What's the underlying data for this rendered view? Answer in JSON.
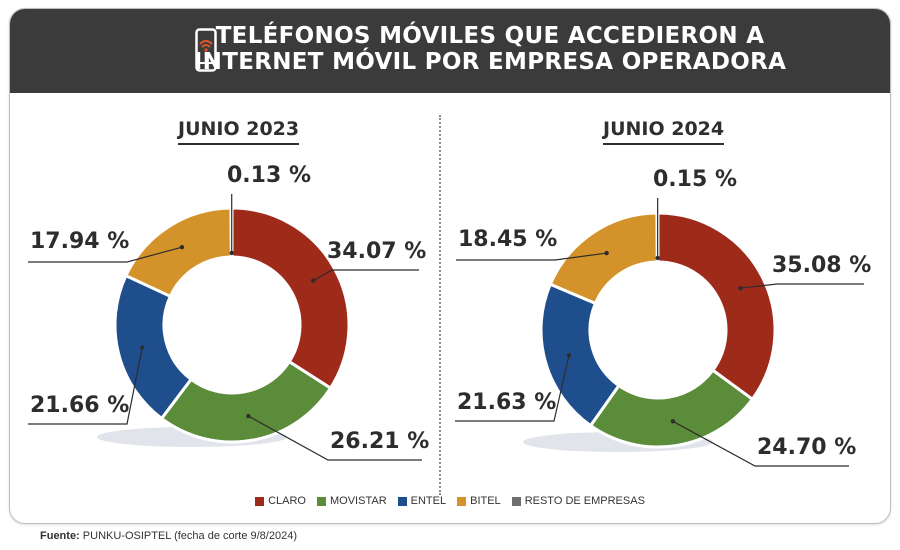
{
  "header": {
    "title_line1": "TELÉFONOS MÓVILES QUE ACCEDIERON A",
    "title_line2": "INTERNET MÓVIL POR EMPRESA OPERADORA",
    "icon": "smartphone-wifi-icon"
  },
  "colors": {
    "claro": "#9e2a1a",
    "movistar": "#5b8c3a",
    "entel": "#1f4e8c",
    "bitel": "#d4922a",
    "resto": "#6e6e6e",
    "header_bg": "#3b3b3b"
  },
  "chart_data": [
    {
      "type": "pie",
      "title": "JUNIO 2023",
      "donut": true,
      "categories": [
        "CLARO",
        "MOVISTAR",
        "ENTEL",
        "BITEL",
        "RESTO DE EMPRESAS"
      ],
      "values": [
        34.07,
        26.21,
        21.66,
        17.94,
        0.13
      ],
      "labels": [
        "34.07 %",
        "26.21 %",
        "21.66 %",
        "17.94 %",
        "0.13 %"
      ]
    },
    {
      "type": "pie",
      "title": "JUNIO 2024",
      "donut": true,
      "categories": [
        "CLARO",
        "MOVISTAR",
        "ENTEL",
        "BITEL",
        "RESTO DE EMPRESAS"
      ],
      "values": [
        35.08,
        24.7,
        21.63,
        18.45,
        0.15
      ],
      "labels": [
        "35.08 %",
        "24.70 %",
        "21.63 %",
        "18.45 %",
        "0.15 %"
      ]
    }
  ],
  "legend": {
    "placement": "bottom",
    "items": [
      "CLARO",
      "MOVISTAR",
      "ENTEL",
      "BITEL",
      "RESTO DE EMPRESAS"
    ]
  },
  "source": {
    "label": "Fuente:",
    "text": "PUNKU-OSIPTEL (fecha de corte 9/8/2024)"
  }
}
